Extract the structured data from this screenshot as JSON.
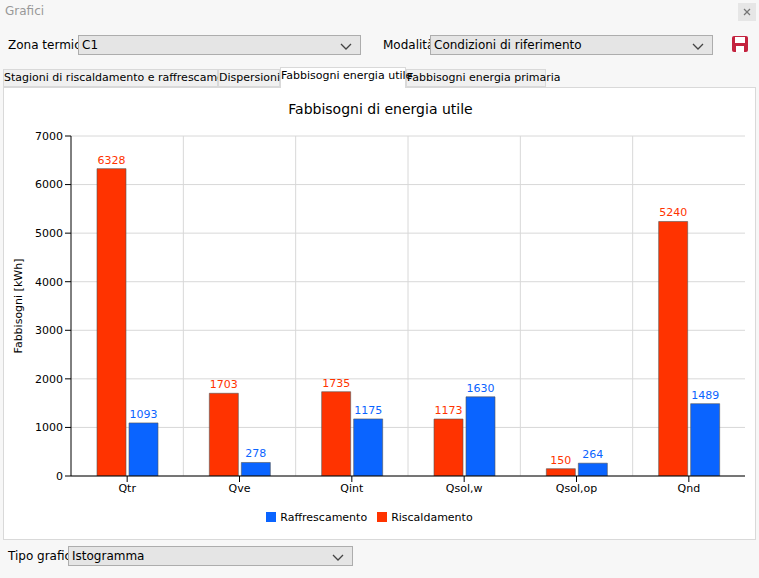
{
  "window_title": "Grafici",
  "controls": {
    "zone_label": "Zona termica",
    "zone_value": "C1",
    "mode_label": "Modalità",
    "mode_value": "Condizioni di riferimento",
    "chart_type_label": "Tipo grafico",
    "chart_type_value": "Istogramma"
  },
  "tabs": [
    "Stagioni di riscaldamento e raffrescamento",
    "Dispersioni",
    "Fabbisogni energia utile",
    "Fabbisogni energia primaria"
  ],
  "selected_tab": "Fabbisogni energia utile",
  "chart_data": {
    "type": "bar",
    "title": "Fabbisogni di energia utile",
    "y_label": "Fabbisogni [kWh]",
    "categories": [
      "Qtr",
      "Qve",
      "Qint",
      "Qsol,w",
      "Qsol,op",
      "Qnd"
    ],
    "series": [
      {
        "name": "Riscaldamento",
        "color": "#ff3300",
        "values": [
          6328,
          1703,
          1735,
          1173,
          150,
          5240
        ]
      },
      {
        "name": "Raffrescamento",
        "color": "#0a64ff",
        "values": [
          1093,
          278,
          1175,
          1630,
          264,
          1489
        ]
      }
    ],
    "ylim": [
      0,
      7000
    ],
    "yticks": [
      0,
      1000,
      2000,
      3000,
      4000,
      5000,
      6000,
      7000
    ],
    "grid": true,
    "data_labels": true,
    "legend": "bottom"
  }
}
